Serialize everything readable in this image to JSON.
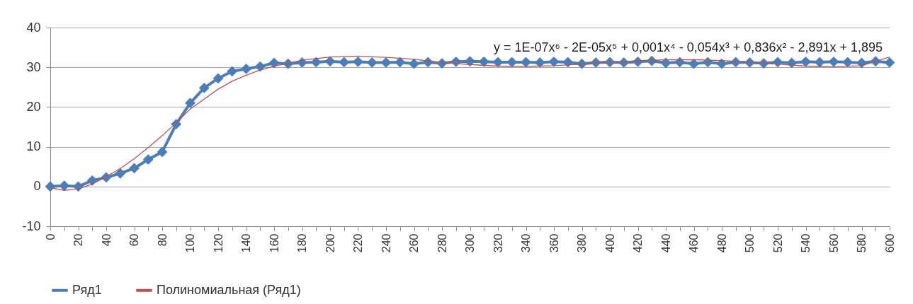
{
  "chart_data": {
    "type": "line",
    "x": [
      0,
      10,
      20,
      30,
      40,
      50,
      60,
      70,
      80,
      90,
      100,
      110,
      120,
      130,
      140,
      150,
      160,
      170,
      180,
      190,
      200,
      210,
      220,
      230,
      240,
      250,
      260,
      270,
      280,
      290,
      300,
      310,
      320,
      330,
      340,
      350,
      360,
      370,
      380,
      390,
      400,
      410,
      420,
      430,
      440,
      450,
      460,
      470,
      480,
      490,
      500,
      510,
      520,
      530,
      540,
      550,
      560,
      570,
      580,
      590,
      600
    ],
    "series": [
      {
        "name": "Ряд1",
        "color": "#4a7ebb",
        "marker": "diamond",
        "values": [
          0,
          0.2,
          0,
          1.5,
          2.3,
          3.3,
          4.6,
          6.8,
          8.7,
          15.7,
          21,
          24.8,
          27.2,
          29,
          29.6,
          30.2,
          31.1,
          30.9,
          31.2,
          31.3,
          31.5,
          31.3,
          31.4,
          31.2,
          31.2,
          31.3,
          30.9,
          31.3,
          31,
          31.4,
          31.5,
          31.4,
          31.3,
          31.3,
          31.3,
          31.2,
          31.4,
          31.3,
          30.9,
          31.2,
          31.3,
          31.2,
          31.4,
          31.6,
          31.1,
          31.3,
          30.9,
          31.3,
          30.9,
          31.3,
          31.2,
          31,
          31.3,
          31.1,
          31.4,
          31.3,
          31.4,
          31.3,
          31.1,
          31.5,
          31.2
        ]
      },
      {
        "name": "Полиномиальная (Ряд1)",
        "color": "#c0504d",
        "marker": "none",
        "x": [
          0,
          10,
          20,
          30,
          40,
          50,
          60,
          70,
          80,
          90,
          100,
          110,
          120,
          130,
          140,
          150,
          160,
          180,
          200,
          220,
          240,
          260,
          280,
          300,
          320,
          340,
          360,
          380,
          400,
          420,
          440,
          460,
          480,
          500,
          520,
          540,
          560,
          580,
          600
        ],
        "values": [
          -0.3,
          -1,
          -0.6,
          0.6,
          2.5,
          4.5,
          7,
          9.8,
          12.8,
          16,
          19.5,
          22,
          24.5,
          26.5,
          28,
          29.3,
          30.3,
          31.8,
          32.6,
          32.8,
          32.5,
          32,
          31.2,
          30.7,
          30.3,
          30.2,
          30.4,
          30.8,
          31.2,
          31.6,
          31.9,
          31.9,
          31.7,
          31.3,
          30.8,
          30.3,
          30.1,
          30.4,
          32.6
        ]
      }
    ],
    "xlim": [
      0,
      600
    ],
    "xticks": [
      0,
      {
        "value": 10,
        "label": null
      },
      20,
      {
        "value": 30,
        "label": null
      },
      40,
      {
        "value": 50,
        "label": null
      },
      60,
      {
        "value": 70,
        "label": null
      },
      80,
      {
        "value": 90,
        "label": null
      },
      100,
      {
        "value": 110,
        "label": null
      },
      120,
      {
        "value": 130,
        "label": null
      },
      140,
      {
        "value": 150,
        "label": null
      },
      160,
      {
        "value": 170,
        "label": null
      },
      180,
      {
        "value": 190,
        "label": null
      },
      200,
      {
        "value": 210,
        "label": null
      },
      220,
      {
        "value": 230,
        "label": null
      },
      240,
      {
        "value": 250,
        "label": null
      },
      260,
      {
        "value": 270,
        "label": null
      },
      280,
      {
        "value": 290,
        "label": null
      },
      300,
      {
        "value": 310,
        "label": null
      },
      320,
      {
        "value": 330,
        "label": null
      },
      340,
      {
        "value": 350,
        "label": null
      },
      360,
      {
        "value": 370,
        "label": null
      },
      380,
      {
        "value": 390,
        "label": null
      },
      400,
      {
        "value": 410,
        "label": null
      },
      420,
      {
        "value": 430,
        "label": null
      },
      440,
      {
        "value": 450,
        "label": null
      },
      460,
      {
        "value": 470,
        "label": null
      },
      480,
      {
        "value": 490,
        "label": null
      },
      500,
      {
        "value": 510,
        "label": null
      },
      520,
      {
        "value": 530,
        "label": null
      },
      540,
      {
        "value": 550,
        "label": null
      },
      560,
      {
        "value": 570,
        "label": null
      },
      580,
      {
        "value": 590,
        "label": null
      },
      600
    ],
    "ylim": [
      -10,
      40
    ],
    "yticks": [
      -10,
      0,
      10,
      20,
      30,
      40
    ],
    "grid": "y",
    "legend": "bottom",
    "annotations": [
      "y = 1E-07x⁶ - 2E-05x⁵ + 0,001x⁴ - 0,054x³ + 0,836x² - 2,891x + 1,895"
    ]
  }
}
